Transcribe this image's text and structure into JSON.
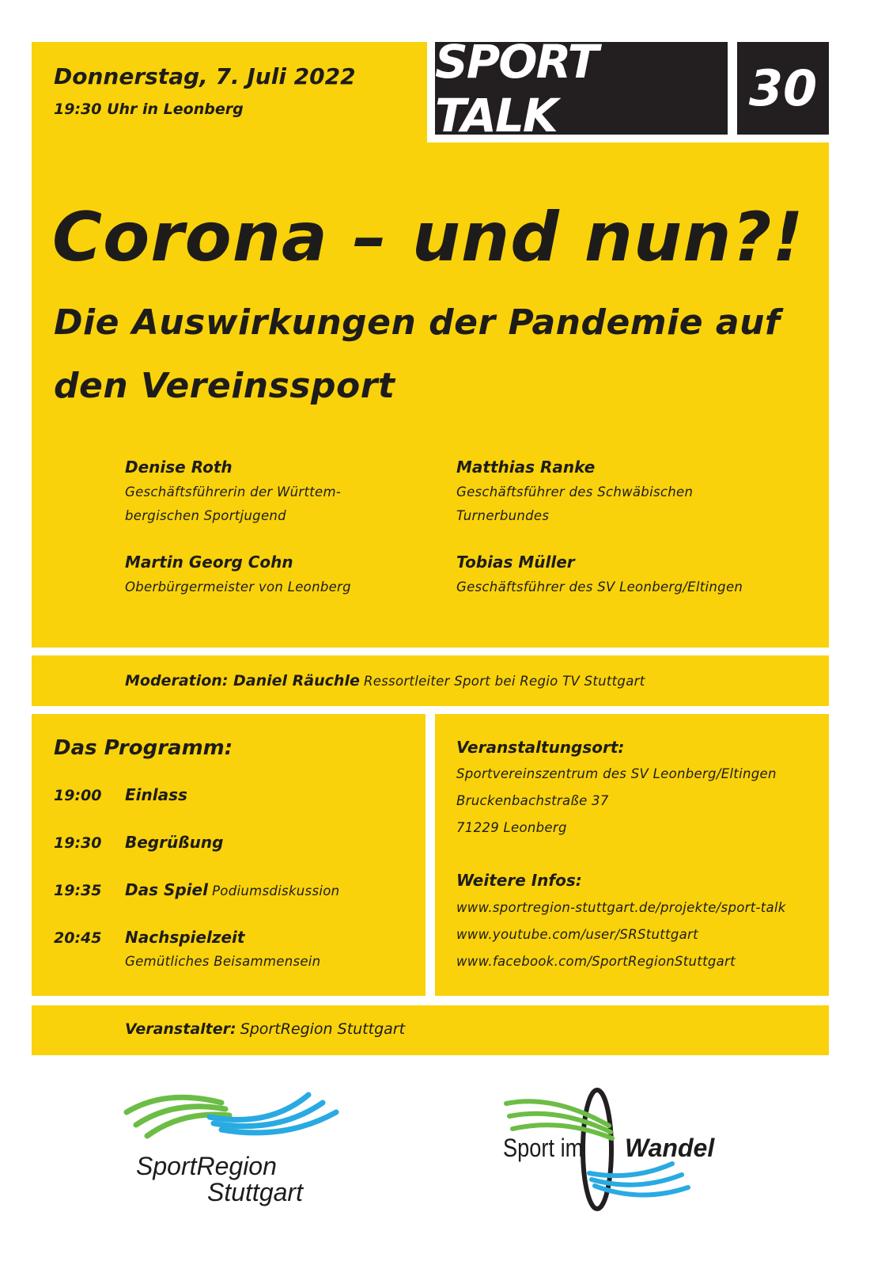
{
  "header": {
    "date": "Donnerstag, 7. Juli 2022",
    "time_place": "19:30 Uhr in Leonberg",
    "series": "SPORT TALK",
    "number": "30"
  },
  "title": "Corona – und nun?!",
  "subtitle_line1": "Die Auswirkungen der Pandemie auf",
  "subtitle_line2": "den Vereinssport",
  "speakers": [
    {
      "name": "Denise Roth",
      "role1": "Geschäftsführerin der Württem-",
      "role2": "bergischen Sportjugend"
    },
    {
      "name": "Matthias Ranke",
      "role1": "Geschäftsführer des Schwäbischen",
      "role2": "Turnerbundes"
    },
    {
      "name": "Martin Georg Cohn",
      "role1": "Oberbürgermeister von Leonberg"
    },
    {
      "name": "Tobias Müller",
      "role1": "Geschäftsführer des SV Leonberg/Eltingen"
    }
  ],
  "moderation": {
    "label": "Moderation: Daniel Räuchle",
    "detail": "Ressortleiter Sport bei Regio TV Stuttgart"
  },
  "program": {
    "heading": "Das Programm:",
    "items": [
      {
        "time": "19:00",
        "title": "Einlass",
        "note": ""
      },
      {
        "time": "19:30",
        "title": "Begrüßung",
        "note": ""
      },
      {
        "time": "19:35",
        "title": "Das Spiel",
        "note": "Podiumsdiskussion"
      },
      {
        "time": "20:45",
        "title": "Nachspielzeit",
        "note": "Gemütliches Beisammensein"
      }
    ]
  },
  "venue": {
    "heading": "Veranstaltungsort:",
    "line1": "Sportvereinszentrum des SV Leonberg/Eltingen",
    "line2": "Bruckenbachstraße 37",
    "line3": "71229 Leonberg"
  },
  "info": {
    "heading": "Weitere Infos:",
    "links": [
      "www.sportregion-stuttgart.de/projekte/sport-talk",
      "www.youtube.com/user/SRStuttgart",
      "www.facebook.com/SportRegionStuttgart"
    ]
  },
  "organizer": {
    "label": "Veranstalter:",
    "value": "SportRegion Stuttgart"
  },
  "logos": {
    "left_line1": "SportRegion",
    "left_line2": "Stuttgart",
    "right_part1": "Sport im",
    "right_part2": "Wandel"
  },
  "colors": {
    "yellow": "#f9d20b",
    "black": "#231f20",
    "green": "#6cbd45",
    "blue": "#29aae2"
  }
}
